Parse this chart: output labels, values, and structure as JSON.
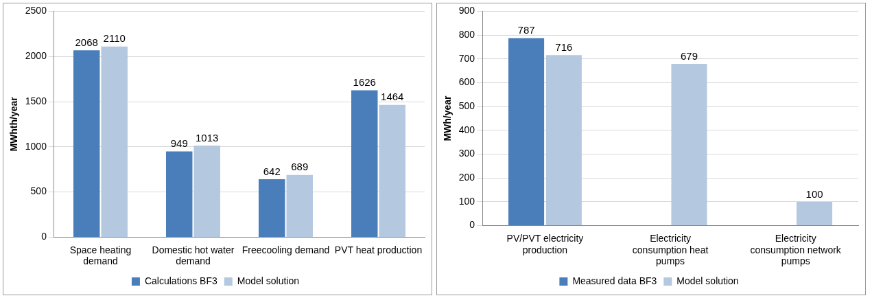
{
  "chart_data": [
    {
      "type": "bar",
      "categories": [
        "Space heating demand",
        "Domestic hot water demand",
        "Freecooling demand",
        "PVT heat production"
      ],
      "ylabel": "MWhth/year",
      "ylim": [
        0,
        2500
      ],
      "yticks": [
        0,
        500,
        1000,
        1500,
        2000,
        2500
      ],
      "grid": "y",
      "legend": "bottom",
      "data_labels": true,
      "series": [
        {
          "name": "Calculations BF3",
          "color": "#4a7ebb",
          "values": [
            2068,
            949,
            642,
            1626
          ]
        },
        {
          "name": "Model solution",
          "color": "#b4c8e0",
          "values": [
            2110,
            1013,
            689,
            1464
          ]
        }
      ]
    },
    {
      "type": "bar",
      "categories": [
        "PV/PVT electricity production",
        "Electricity consumption heat pumps",
        "Electricity consumption network pumps"
      ],
      "ylabel": "MWh/year",
      "ylim": [
        0,
        900
      ],
      "yticks": [
        0,
        100,
        200,
        300,
        400,
        500,
        600,
        700,
        800,
        900
      ],
      "grid": "y",
      "legend": "bottom",
      "data_labels": true,
      "series": [
        {
          "name": "Measured data BF3",
          "color": "#4a7ebb",
          "values": [
            787,
            null,
            null
          ]
        },
        {
          "name": "Model solution",
          "color": "#b4c8e0",
          "values": [
            716,
            679,
            100
          ]
        }
      ]
    }
  ]
}
